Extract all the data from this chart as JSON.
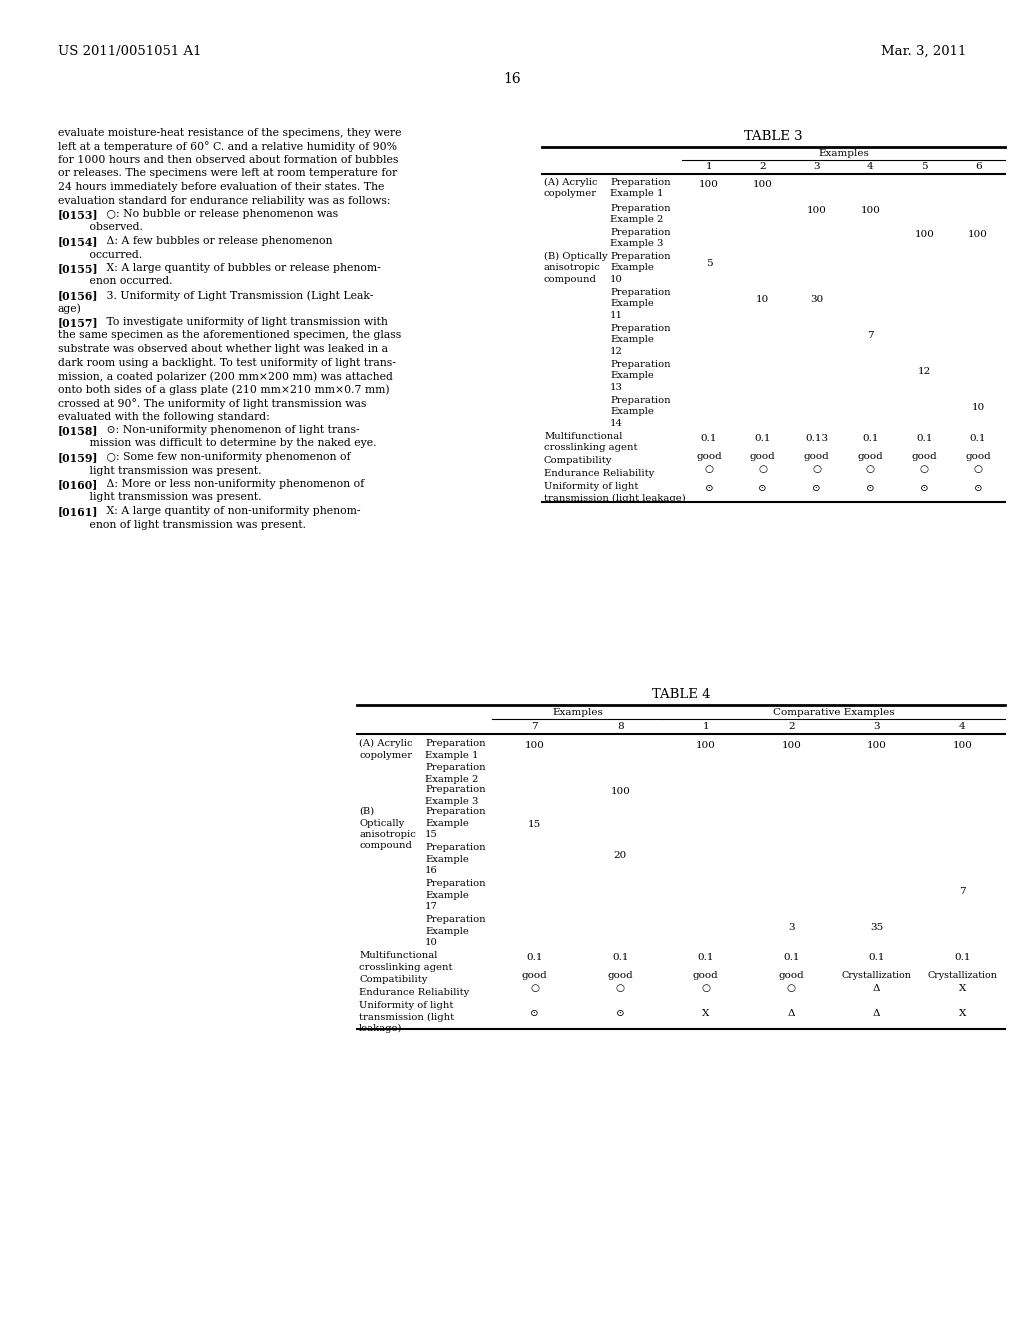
{
  "page_header_left": "US 2011/0051051 A1",
  "page_header_right": "Mar. 3, 2011",
  "page_number": "16",
  "left_text_plain": [
    "evaluate moisture-heat resistance of the specimens, they were",
    "left at a temperature of 60° C. and a relative humidity of 90%",
    "for 1000 hours and then observed about formation of bubbles",
    "or releases. The specimens were left at room temperature for",
    "24 hours immediately before evaluation of their states. The",
    "evaluation standard for endurance reliability was as follows:"
  ],
  "para_0153": "[0153]",
  "para_0153_text": "   ○: No bubble or release phenomenon was",
  "para_0153_cont": "         observed.",
  "para_0154": "[0154]",
  "para_0154_text": "   Δ: A few bubbles or release phenomenon",
  "para_0154_cont": "         occurred.",
  "para_0155": "[0155]",
  "para_0155_text": "   X: A large quantity of bubbles or release phenom-",
  "para_0155_cont": "         enon occurred.",
  "para_0156": "[0156]",
  "para_0156_text": "   3. Uniformity of Light Transmission (Light Leak-",
  "para_0156_cont": "age)",
  "para_0157": "[0157]",
  "para_0157_text": "   To investigate uniformity of light transmission with",
  "left_text_mid": [
    "the same specimen as the aforementioned specimen, the glass",
    "substrate was observed about whether light was leaked in a",
    "dark room using a backlight. To test uniformity of light trans-",
    "mission, a coated polarizer (200 mm×200 mm) was attached",
    "onto both sides of a glass plate (210 mm×210 mm×0.7 mm)",
    "crossed at 90°. The uniformity of light transmission was",
    "evaluated with the following standard:"
  ],
  "para_0158": "[0158]",
  "para_0158_text": "   ⊙: Non-uniformity phenomenon of light trans-",
  "para_0158_cont": "         mission was difficult to determine by the naked eye.",
  "para_0159": "[0159]",
  "para_0159_text": "   ○: Some few non-uniformity phenomenon of",
  "para_0159_cont": "         light transmission was present.",
  "para_0160": "[0160]",
  "para_0160_text": "   Δ: More or less non-uniformity phenomenon of",
  "para_0160_cont": "         light transmission was present.",
  "para_0161": "[0161]",
  "para_0161_text": "   X: A large quantity of non-uniformity phenom-",
  "para_0161_cont": "         enon of light transmission was present.",
  "table3_title": "TABLE 3",
  "table3_header_group": "Examples",
  "table3_cols": [
    "1",
    "2",
    "3",
    "4",
    "5",
    "6"
  ],
  "table3_col_values": [
    [
      "100",
      "100",
      "",
      "",
      "",
      ""
    ],
    [
      "",
      "",
      "100",
      "100",
      "",
      ""
    ],
    [
      "",
      "",
      "",
      "",
      "100",
      "100"
    ],
    [
      "5",
      "",
      "",
      "",
      "",
      ""
    ],
    [
      "",
      "10",
      "30",
      "",
      "",
      ""
    ],
    [
      "",
      "",
      "",
      "7",
      "",
      ""
    ],
    [
      "",
      "",
      "",
      "",
      "12",
      ""
    ],
    [
      "",
      "",
      "",
      "",
      "",
      "10"
    ],
    [
      "0.1",
      "0.1",
      "0.13",
      "0.1",
      "0.1",
      "0.1"
    ],
    [
      "good",
      "good",
      "good",
      "good",
      "good",
      "good"
    ],
    [
      "○",
      "○",
      "○",
      "○",
      "○",
      "○"
    ],
    [
      "⊙",
      "⊙",
      "⊙",
      "⊙",
      "⊙",
      "⊙"
    ]
  ],
  "table4_title": "TABLE 4",
  "table4_header_group1": "Examples",
  "table4_header_group2": "Comparative Examples",
  "table4_cols": [
    "7",
    "8",
    "1",
    "2",
    "3",
    "4"
  ],
  "table4_col_values": [
    [
      "100",
      "",
      "100",
      "100",
      "100",
      "100"
    ],
    [
      "",
      "",
      "",
      "",
      "",
      ""
    ],
    [
      "",
      "100",
      "",
      "",
      "",
      ""
    ],
    [
      "15",
      "",
      "",
      "",
      "",
      ""
    ],
    [
      "",
      "20",
      "",
      "",
      "",
      ""
    ],
    [
      "",
      "",
      "",
      "",
      "",
      "7"
    ],
    [
      "",
      "",
      "",
      "3",
      "35",
      ""
    ],
    [
      "0.1",
      "0.1",
      "0.1",
      "0.1",
      "0.1",
      "0.1"
    ],
    [
      "good",
      "good",
      "good",
      "good",
      "Crystallization",
      "Crystallization"
    ],
    [
      "○",
      "○",
      "○",
      "○",
      "Δ",
      "X"
    ],
    [
      "⊙",
      "⊙",
      "X",
      "Δ",
      "Δ",
      "X"
    ]
  ]
}
